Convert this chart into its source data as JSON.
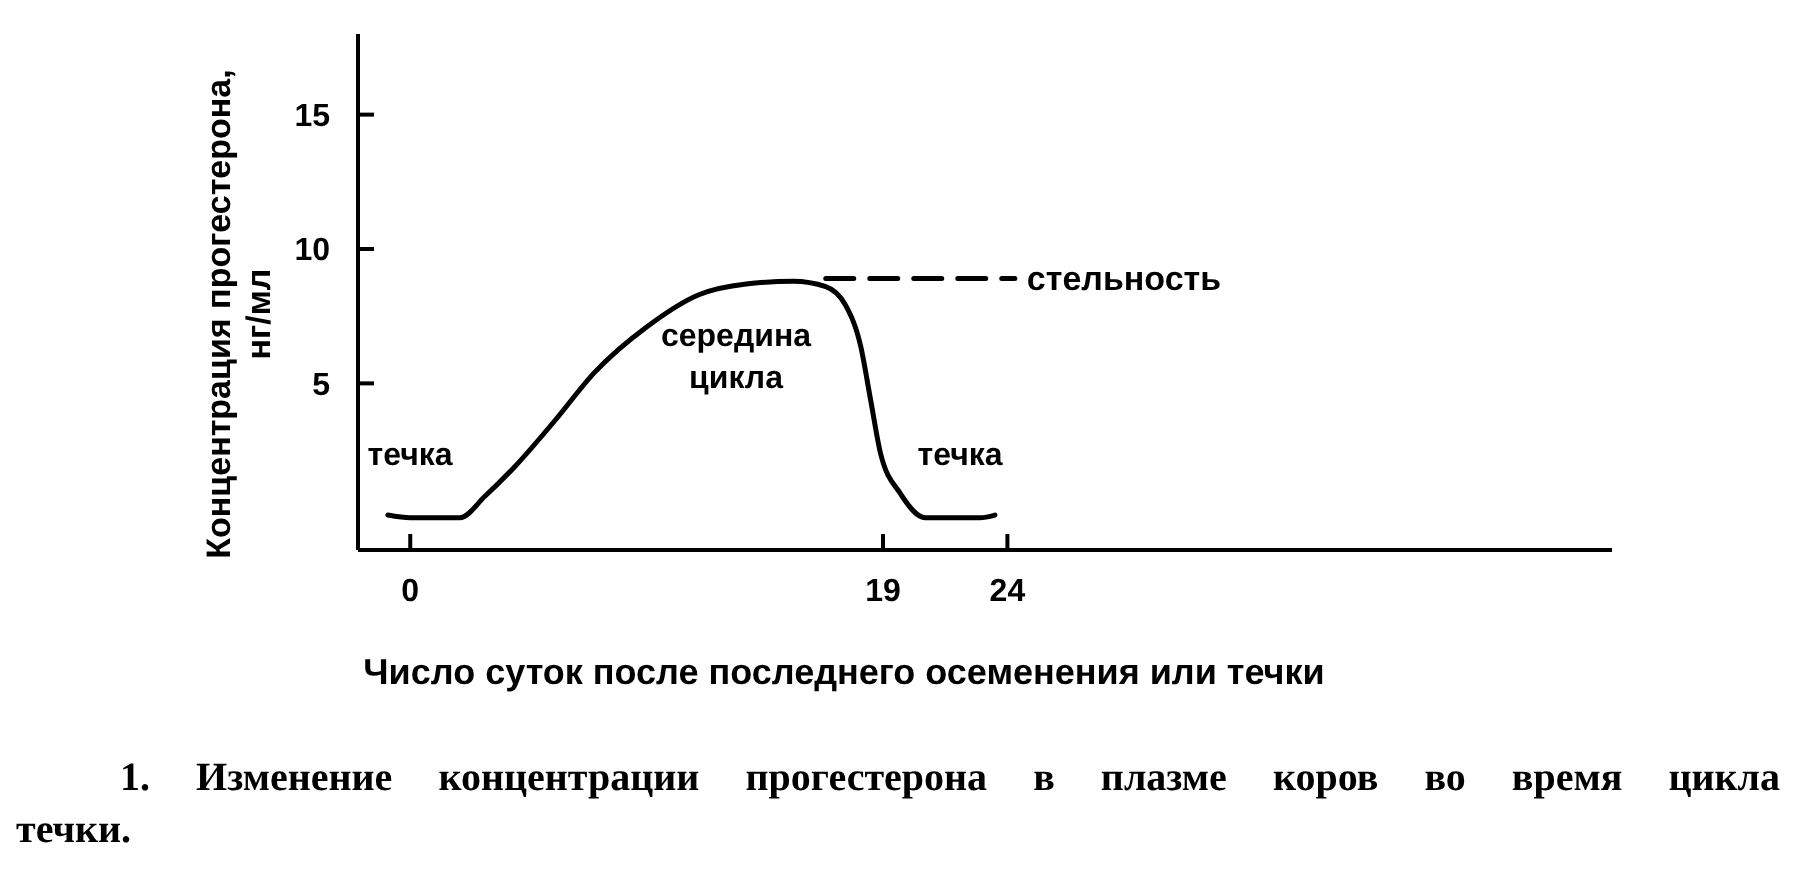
{
  "chart_data": {
    "type": "line",
    "xlabel": "Число суток после последнего осеменения или течки",
    "ylabel": "Концентрация прогестерона, нг/мл",
    "xlim": [
      -2.1,
      48.3
    ],
    "xticks": [
      0,
      19,
      24
    ],
    "ylim": [
      -1.2,
      18
    ],
    "yticks": [
      5,
      10,
      15
    ],
    "marker": "none",
    "series": [
      {
        "color": "#000000",
        "line_style": "solid",
        "x": [
          -0.9,
          0,
          1,
          2,
          3,
          4.2,
          5.8,
          7.4,
          9.5,
          11.6,
          13.5,
          15.4,
          16.7,
          17.5,
          18.1,
          18.5,
          18.9,
          19.7,
          20.7,
          21.8,
          22.9,
          23.5
        ],
        "values": [
          0.1,
          0,
          0,
          0,
          0.8,
          1.9,
          3.6,
          5.4,
          7.1,
          8.3,
          8.7,
          8.8,
          8.6,
          7.9,
          6.4,
          4.4,
          2.4,
          0.9,
          0,
          0,
          0,
          0.1
        ]
      },
      {
        "name": "стельность",
        "color": "#000000",
        "line_style": "dashed",
        "x": [
          16.7,
          24.3
        ],
        "values": [
          8.9,
          8.9
        ]
      }
    ],
    "annotations": [
      "течка",
      "середина цикла",
      "течка",
      "1. Изменение концентрации прогестерона в плазме коров во время цикла течки."
    ]
  }
}
